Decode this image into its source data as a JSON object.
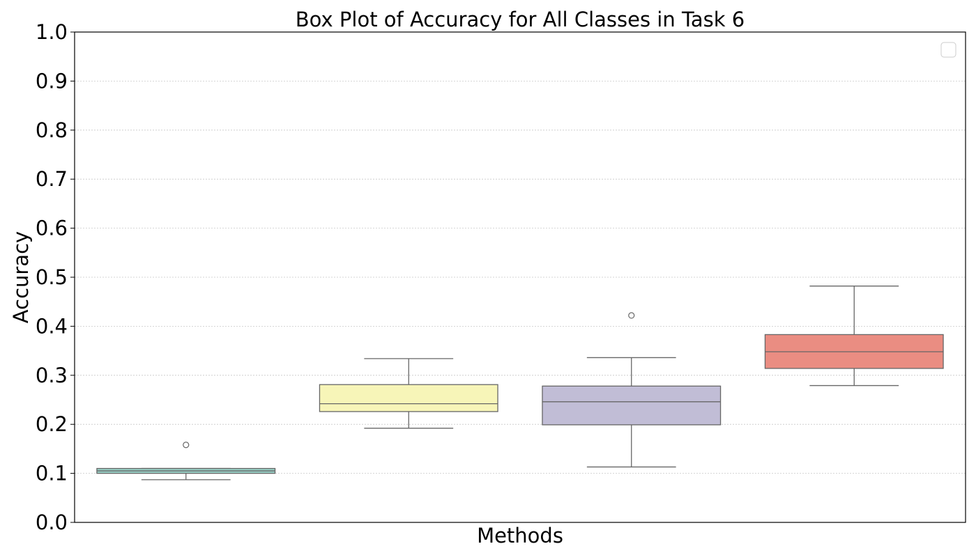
{
  "chart_data": {
    "type": "box",
    "title": "Box Plot of Accuracy for All Classes in Task 6",
    "xlabel": "Methods",
    "ylabel": "Accuracy",
    "ylim": [
      0.0,
      1.0
    ],
    "yticks": [
      "0.0",
      "0.1",
      "0.2",
      "0.3",
      "0.4",
      "0.5",
      "0.6",
      "0.7",
      "0.8",
      "0.9",
      "1.0"
    ],
    "grid": "horizontal dotted",
    "legend": {
      "position": "top-right",
      "entries": []
    },
    "boxes": [
      {
        "whisker_low": 0.087,
        "q1": 0.1,
        "median": 0.105,
        "q3": 0.11,
        "whisker_high": 0.11,
        "outliers": [
          0.158
        ],
        "color": "#99cfc5"
      },
      {
        "whisker_low": 0.192,
        "q1": 0.226,
        "median": 0.242,
        "q3": 0.281,
        "whisker_high": 0.334,
        "outliers": [],
        "color": "#f7f5b8"
      },
      {
        "whisker_low": 0.113,
        "q1": 0.199,
        "median": 0.246,
        "q3": 0.278,
        "whisker_high": 0.336,
        "outliers": [
          0.422
        ],
        "color": "#c1bdd6"
      },
      {
        "whisker_low": 0.279,
        "q1": 0.314,
        "median": 0.348,
        "q3": 0.383,
        "whisker_high": 0.482,
        "outliers": [],
        "color": "#ea8d82"
      }
    ]
  }
}
